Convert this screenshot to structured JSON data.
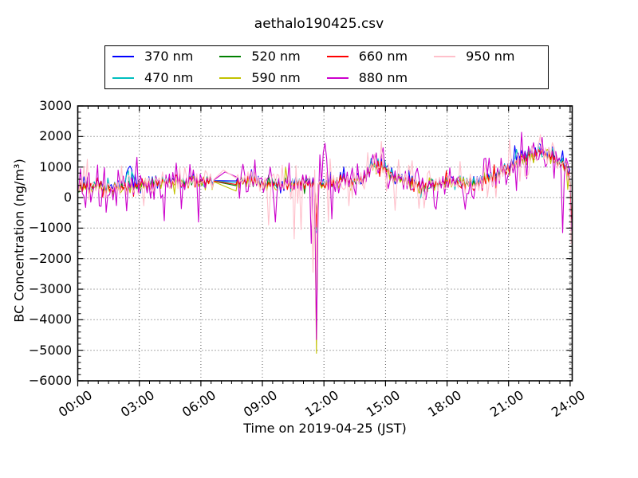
{
  "chart": {
    "title": "aethalo190425.csv",
    "xlabel": "Time on 2019-04-25 (JST)",
    "ylabel": "BC Concentration (ng/m³)"
  },
  "legend": {
    "position": "top-center",
    "items": [
      {
        "label": "370 nm",
        "color": "#0000ff"
      },
      {
        "label": "470 nm",
        "color": "#00bfbf"
      },
      {
        "label": "520 nm",
        "color": "#008000"
      },
      {
        "label": "590 nm",
        "color": "#c2c200"
      },
      {
        "label": "660 nm",
        "color": "#ff0000"
      },
      {
        "label": "880 nm",
        "color": "#cc00cc"
      },
      {
        "label": "950 nm",
        "color": "#ffc0cb"
      }
    ]
  },
  "axes": {
    "x": {
      "label": "Time on 2019-04-25 (JST)",
      "tick_hours": [
        0,
        3,
        6,
        9,
        12,
        15,
        18,
        21,
        24
      ],
      "tick_labels": [
        "00:00",
        "03:00",
        "06:00",
        "09:00",
        "12:00",
        "15:00",
        "18:00",
        "21:00",
        "24:00"
      ],
      "minor_step_hours": 0.5
    },
    "y": {
      "label": "BC Concentration (ng/m³)",
      "tick_values": [
        3000,
        2000,
        1000,
        0,
        -1000,
        -2000,
        -3000,
        -4000,
        -5000,
        -6000
      ],
      "tick_labels": [
        "3000",
        "2000",
        "1000",
        "0",
        "−1000",
        "−2000",
        "−3000",
        "−4000",
        "−5000",
        "−6000"
      ],
      "minor_step": 200
    }
  },
  "chart_data": {
    "type": "line",
    "title": "aethalo190425.csv",
    "xlabel": "Time on 2019-04-25 (JST)",
    "ylabel": "BC Concentration (ng/m³)",
    "xlim_hours": [
      0,
      24.1
    ],
    "ylim": [
      -6000,
      3000
    ],
    "grid": true,
    "grid_style": "dotted",
    "legend_position": "top-center",
    "x_tick_labels": [
      "00:00",
      "03:00",
      "06:00",
      "09:00",
      "12:00",
      "15:00",
      "18:00",
      "21:00",
      "24:00"
    ],
    "y_ticks": [
      3000,
      2000,
      1000,
      0,
      -1000,
      -2000,
      -3000,
      -4000,
      -5000,
      -6000
    ],
    "baseline_keyframes": [
      [
        0,
        260
      ],
      [
        0.5,
        380
      ],
      [
        1,
        340
      ],
      [
        1.5,
        420
      ],
      [
        2,
        400
      ],
      [
        2.5,
        470
      ],
      [
        3,
        390
      ],
      [
        3.5,
        430
      ],
      [
        4,
        370
      ],
      [
        4.5,
        420
      ],
      [
        5,
        400
      ],
      [
        5.5,
        430
      ],
      [
        6,
        450
      ],
      [
        6.68,
        545
      ],
      [
        7.66,
        430
      ],
      [
        8,
        390
      ],
      [
        8.5,
        420
      ],
      [
        9,
        380
      ],
      [
        9.5,
        350
      ],
      [
        10,
        330
      ],
      [
        10.5,
        340
      ],
      [
        11,
        360
      ],
      [
        11.5,
        380
      ],
      [
        12,
        390
      ],
      [
        12.5,
        420
      ],
      [
        13,
        430
      ],
      [
        13.5,
        460
      ],
      [
        14,
        600
      ],
      [
        14.3,
        900
      ],
      [
        14.6,
        1020
      ],
      [
        14.9,
        950
      ],
      [
        15.2,
        700
      ],
      [
        15.6,
        530
      ],
      [
        16,
        490
      ],
      [
        16.5,
        470
      ],
      [
        17,
        450
      ],
      [
        17.5,
        470
      ],
      [
        18,
        520
      ],
      [
        18.5,
        560
      ],
      [
        19,
        610
      ],
      [
        19.5,
        660
      ],
      [
        20,
        740
      ],
      [
        20.5,
        870
      ],
      [
        21,
        1080
      ],
      [
        21.5,
        1270
      ],
      [
        22,
        1300
      ],
      [
        22.5,
        1340
      ],
      [
        23,
        1280
      ],
      [
        23.3,
        1150
      ],
      [
        23.6,
        950
      ],
      [
        23.9,
        680
      ],
      [
        24.07,
        550
      ]
    ],
    "gap": {
      "start_hour": 6.68,
      "end_hour": 7.66,
      "note": "data gap bridged by straight lines"
    },
    "noise": {
      "seed": 20190425,
      "step_hours": 0.083333,
      "start_hour": 0.05,
      "end_hour": 24.05,
      "zig_min": 55,
      "zig_max": 185,
      "wander_step": 110,
      "wander_clamp": 150
    },
    "notable_features": {
      "deepest_spike": {
        "hour": 11.65,
        "value": -5100,
        "series": "590 nm"
      },
      "highest_spike": {
        "hour": 22.55,
        "value": 2060,
        "series": "950 nm"
      },
      "evening_plateau": {
        "hours": [
          21,
          23.3
        ],
        "level": 1300
      },
      "final_dropoff": {
        "hour": 24.05,
        "min_value": -1520
      }
    },
    "series": [
      {
        "name": "370 nm",
        "wavelength_nm": 370,
        "color": "#0000ff",
        "scale": 1.08,
        "offset": 25,
        "noise": 70,
        "shared_factor": 1.0,
        "spike_prob": 0.05,
        "spike_min": 120,
        "spike_max": 320,
        "floor": -320,
        "gap_start": 555,
        "gap_end": 545,
        "events": [
          [
            2.35,
            820
          ],
          [
            2.45,
            960
          ],
          [
            2.55,
            1030
          ],
          [
            2.67,
            920
          ],
          [
            2.8,
            760
          ],
          [
            11.65,
            -1150
          ],
          [
            21.3,
            1700
          ],
          [
            24.05,
            -700
          ]
        ]
      },
      {
        "name": "470 nm",
        "wavelength_nm": 470,
        "color": "#00bfbf",
        "scale": 1.05,
        "offset": 8,
        "noise": 70,
        "shared_factor": 1.0,
        "spike_prob": 0.05,
        "spike_min": 120,
        "spike_max": 300,
        "floor": -320,
        "gap_start": 545,
        "gap_end": 490,
        "events": [
          [
            2.4,
            750
          ],
          [
            2.5,
            880
          ],
          [
            2.6,
            840
          ],
          [
            2.72,
            700
          ],
          [
            11.65,
            -1080
          ],
          [
            21.4,
            1580
          ],
          [
            24.05,
            -760
          ]
        ]
      },
      {
        "name": "520 nm",
        "wavelength_nm": 520,
        "color": "#008000",
        "scale": 1.0,
        "offset": -5,
        "noise": 65,
        "shared_factor": 0.95,
        "spike_prob": 0.04,
        "spike_min": 120,
        "spike_max": 280,
        "floor": -320,
        "gap_start": 535,
        "gap_end": 390,
        "events": [
          [
            11.65,
            -1020
          ],
          [
            24.05,
            -730
          ]
        ]
      },
      {
        "name": "590 nm",
        "wavelength_nm": 590,
        "color": "#c2c200",
        "scale": 0.97,
        "offset": -25,
        "noise": 90,
        "shared_factor": 1.0,
        "spike_prob": 0.07,
        "spike_min": 130,
        "spike_max": 380,
        "floor": -380,
        "gap_start": 520,
        "gap_end": 215,
        "events": [
          [
            11.65,
            -5100
          ],
          [
            22.9,
            1580
          ],
          [
            24.05,
            -800
          ]
        ]
      },
      {
        "name": "660 nm",
        "wavelength_nm": 660,
        "color": "#ff0000",
        "scale": 1.0,
        "offset": 0,
        "noise": 75,
        "shared_factor": 0.98,
        "spike_prob": 0.05,
        "spike_min": 120,
        "spike_max": 300,
        "floor": -320,
        "gap_start": 540,
        "gap_end": 430,
        "events": [
          [
            11.65,
            -960
          ],
          [
            24.05,
            -690
          ]
        ]
      },
      {
        "name": "880 nm",
        "wavelength_nm": 880,
        "color": "#cc00cc",
        "scale": 1.0,
        "offset": 0,
        "noise": 165,
        "shared_factor": 1.3,
        "spike_prob": 0.3,
        "spike_min": 220,
        "spike_max": 720,
        "floor": -830,
        "gap_start": 575,
        "gap_end": 680,
        "gap_mid": [
          7.18,
          840
        ],
        "events": [
          [
            2.9,
            1320
          ],
          [
            4.2,
            -760
          ],
          [
            5.9,
            -800
          ],
          [
            8.6,
            1230
          ],
          [
            9.6,
            -800
          ],
          [
            10.3,
            1130
          ],
          [
            11.42,
            -1500
          ],
          [
            11.65,
            -4650
          ],
          [
            11.8,
            1400
          ],
          [
            11.95,
            1480
          ],
          [
            12.05,
            1780
          ],
          [
            12.4,
            -700
          ],
          [
            14.85,
            1630
          ],
          [
            17.5,
            -380
          ],
          [
            19.9,
            1290
          ],
          [
            22.2,
            1800
          ],
          [
            23.67,
            -1150
          ],
          [
            24.05,
            -1100
          ]
        ]
      },
      {
        "name": "950 nm",
        "wavelength_nm": 950,
        "color": "#ffc0cb",
        "scale": 1.0,
        "offset": 10,
        "noise": 150,
        "shared_factor": 1.15,
        "spike_prob": 0.22,
        "spike_min": 200,
        "spike_max": 640,
        "floor": -830,
        "gap_start": 590,
        "gap_end": 640,
        "gap_mid": [
          7.1,
          900
        ],
        "events": [
          [
            9.3,
            -900
          ],
          [
            10.55,
            -1350
          ],
          [
            10.9,
            -1050
          ],
          [
            11.5,
            -2450
          ],
          [
            11.65,
            -2300
          ],
          [
            12.2,
            -800
          ],
          [
            14.5,
            1420
          ],
          [
            15.5,
            -420
          ],
          [
            16.6,
            -350
          ],
          [
            18.6,
            1180
          ],
          [
            21.05,
            1900
          ],
          [
            22.55,
            2060
          ],
          [
            23.2,
            1650
          ],
          [
            24.05,
            -1520
          ]
        ]
      }
    ]
  }
}
